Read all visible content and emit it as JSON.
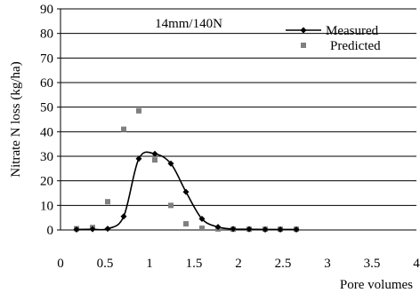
{
  "chart_data": {
    "type": "line",
    "annotation": "14mm/140N",
    "xlabel": "Pore volumes",
    "ylabel": "Nitrate N loss (kg/ha)",
    "xlim": [
      0,
      4
    ],
    "ylim": [
      0,
      90
    ],
    "x_ticks": [
      "0",
      "0.5",
      "1",
      "1.5",
      "2",
      "2.5",
      "3",
      "3.5",
      "4"
    ],
    "y_ticks": [
      "0",
      "10",
      "20",
      "30",
      "40",
      "50",
      "60",
      "70",
      "80",
      "90"
    ],
    "grid": "horizontal",
    "legend_position": "top-right",
    "series": [
      {
        "name": "Measured",
        "style": "line-diamond",
        "color": "#000000",
        "points": [
          [
            0.18,
            0.2
          ],
          [
            0.36,
            0.3
          ],
          [
            0.53,
            0.5
          ],
          [
            0.71,
            5.5
          ],
          [
            0.88,
            29
          ],
          [
            1.06,
            31
          ],
          [
            1.24,
            27
          ],
          [
            1.41,
            15.5
          ],
          [
            1.59,
            4.5
          ],
          [
            1.77,
            1.2
          ],
          [
            1.94,
            0.4
          ],
          [
            2.12,
            0.3
          ],
          [
            2.3,
            0.2
          ],
          [
            2.47,
            0.2
          ],
          [
            2.65,
            0.2
          ]
        ]
      },
      {
        "name": "Predicted",
        "style": "square-markers",
        "color": "#808080",
        "points": [
          [
            0.18,
            0.5
          ],
          [
            0.36,
            1
          ],
          [
            0.53,
            11.5
          ],
          [
            0.71,
            41
          ],
          [
            0.88,
            48.5
          ],
          [
            1.06,
            28.5
          ],
          [
            1.24,
            10
          ],
          [
            1.41,
            2.5
          ],
          [
            1.59,
            0.7
          ],
          [
            1.77,
            0.4
          ],
          [
            1.94,
            0.3
          ],
          [
            2.12,
            0.3
          ],
          [
            2.3,
            0.3
          ],
          [
            2.47,
            0.3
          ],
          [
            2.65,
            0.3
          ]
        ]
      }
    ]
  }
}
